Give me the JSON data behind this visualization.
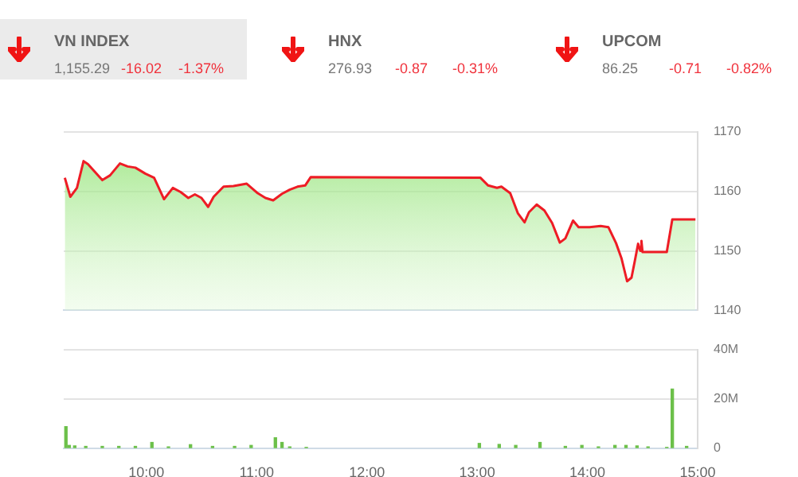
{
  "chart_data": [
    {
      "type": "other",
      "categories": [
        "VN INDEX",
        "HNX",
        "UPCOM"
      ],
      "series": [
        {
          "values": [
            1155.29,
            276.93,
            86.25
          ],
          "value_labels": [
            "1,155.29",
            "276.93",
            "86.25"
          ]
        },
        {
          "color": "#f0323c",
          "values": [
            -16.02,
            -0.87,
            -0.71
          ],
          "value_labels": [
            "-16.02",
            "-0.87",
            "-0.71"
          ]
        },
        {
          "color": "#f0323c",
          "values": [
            -1.37,
            -0.31,
            -0.82
          ],
          "value_labels": [
            "-1.37%",
            "-0.31%",
            "-0.82%"
          ]
        }
      ]
    },
    {
      "type": "area",
      "xlim": [
        9.25,
        15
      ],
      "ylim": [
        1140,
        1170
      ],
      "yticks": [
        1140,
        1150,
        1160,
        1170
      ],
      "grid": "y",
      "legend": false,
      "tick_labels": "y",
      "marker": "none",
      "series": [
        {
          "color": "#ee1c25",
          "x": [
            9.26,
            9.31,
            9.37,
            9.43,
            9.47,
            9.6,
            9.67,
            9.76,
            9.83,
            9.9,
            9.99,
            10.07,
            10.16,
            10.24,
            10.31,
            10.38,
            10.44,
            10.5,
            10.56,
            10.61,
            10.7,
            10.79,
            10.91,
            11.01,
            11.08,
            11.15,
            11.23,
            11.3,
            11.37,
            11.44,
            11.49,
            13.03,
            13.1,
            13.18,
            13.22,
            13.3,
            13.37,
            13.43,
            13.47,
            13.54,
            13.61,
            13.68,
            13.75,
            13.8,
            13.87,
            13.92,
            14.02,
            14.12,
            14.19,
            14.26,
            14.31,
            14.36,
            14.4,
            14.43,
            14.46,
            14.48,
            14.49,
            14.5,
            14.72,
            14.77,
            14.98
          ],
          "values": [
            1162.3,
            1159.1,
            1160.6,
            1165.1,
            1164.6,
            1161.9,
            1162.7,
            1164.7,
            1164.2,
            1164.0,
            1163.0,
            1162.3,
            1158.7,
            1160.6,
            1159.9,
            1158.9,
            1159.5,
            1158.9,
            1157.4,
            1159.1,
            1160.8,
            1160.9,
            1161.3,
            1159.7,
            1158.9,
            1158.5,
            1159.6,
            1160.3,
            1160.8,
            1161.0,
            1162.4,
            1162.3,
            1161.0,
            1160.6,
            1160.8,
            1159.7,
            1156.3,
            1154.8,
            1156.5,
            1157.8,
            1156.8,
            1154.7,
            1151.4,
            1152.1,
            1155.1,
            1154.0,
            1154.0,
            1154.2,
            1154.0,
            1151.3,
            1148.7,
            1144.9,
            1145.5,
            1148.3,
            1151.2,
            1150.0,
            1151.7,
            1149.8,
            1149.8,
            1155.3,
            1155.3
          ]
        }
      ]
    },
    {
      "type": "bar",
      "xlim": [
        9.25,
        15
      ],
      "ylim": [
        0,
        40
      ],
      "yticks": [
        0,
        {
          "value": 20,
          "label": "20M"
        },
        {
          "value": 40,
          "label": "40M"
        }
      ],
      "grid": "y",
      "legend": false,
      "xticks": [
        {
          "value": 10,
          "label": "10:00"
        },
        {
          "value": 11,
          "label": "11:00"
        },
        {
          "value": 12,
          "label": "12:00"
        },
        {
          "value": 13,
          "label": "13:00"
        },
        {
          "value": 14,
          "label": "14:00"
        },
        {
          "value": 15,
          "label": "15:00"
        }
      ],
      "x": [
        9.27,
        9.3,
        9.35,
        9.45,
        9.6,
        9.75,
        9.9,
        10.05,
        10.2,
        10.4,
        10.6,
        10.8,
        10.95,
        11.17,
        11.23,
        11.3,
        11.45,
        13.02,
        13.2,
        13.35,
        13.57,
        13.8,
        13.95,
        14.1,
        14.25,
        14.35,
        14.45,
        14.55,
        14.72,
        14.77,
        14.9
      ],
      "series": [
        {
          "color": "#6cc04a",
          "values": [
            8.8,
            1.2,
            1,
            0.8,
            0.8,
            0.8,
            0.8,
            2.4,
            0.6,
            1.5,
            0.8,
            0.8,
            1.2,
            4.3,
            2.4,
            0.6,
            0.4,
            2,
            1.6,
            1.2,
            2.4,
            0.8,
            1.2,
            0.6,
            1.2,
            1.2,
            1,
            0.6,
            0.4,
            24,
            0.8
          ]
        }
      ]
    }
  ]
}
